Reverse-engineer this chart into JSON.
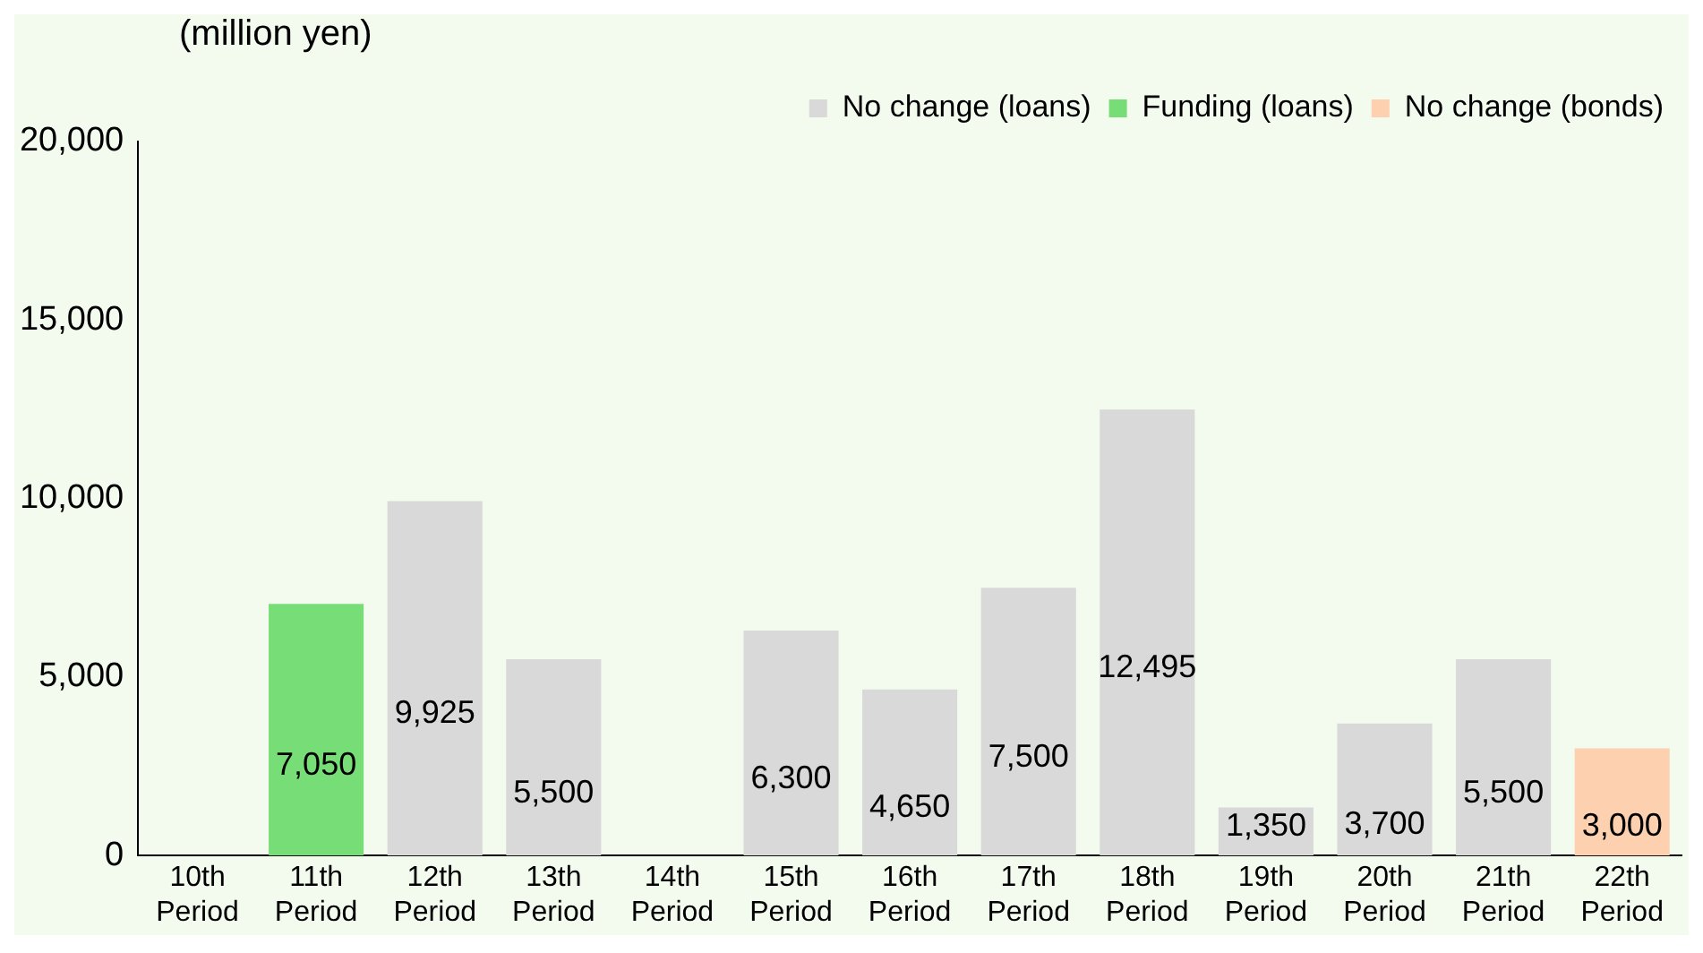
{
  "chart_data": {
    "type": "bar",
    "ylabel": "(million yen)",
    "stacked": true,
    "legend": "top right",
    "grid": false,
    "categories": [
      "10th Period",
      "11th Period",
      "12th Period",
      "13th Period",
      "14th Period",
      "15th Period",
      "16th Period",
      "17th Period",
      "18th Period",
      "19th Period",
      "20th Period",
      "21th Period",
      "22th Period"
    ],
    "series": [
      {
        "name": "No change (loans)",
        "color": "#d9d9d9",
        "values": [
          null,
          null,
          9925,
          5500,
          null,
          6300,
          4650,
          7500,
          12495,
          1350,
          3700,
          5500,
          null
        ],
        "value_labels": [
          null,
          null,
          "9,925",
          "5,500",
          null,
          "6,300",
          "4,650",
          "7,500",
          "12,495",
          "1,350",
          "3,700",
          "5,500",
          null
        ]
      },
      {
        "name": "Funding (loans)",
        "color": "#77dd77",
        "values": [
          null,
          7050,
          null,
          null,
          null,
          null,
          null,
          null,
          null,
          null,
          null,
          null,
          null
        ],
        "value_labels": [
          null,
          "7,050",
          null,
          null,
          null,
          null,
          null,
          null,
          null,
          null,
          null,
          null,
          null
        ]
      },
      {
        "name": "No change (bonds)",
        "color": "#fdd0b0",
        "values": [
          null,
          null,
          null,
          null,
          null,
          null,
          null,
          null,
          null,
          null,
          null,
          null,
          3000
        ],
        "value_labels": [
          null,
          null,
          null,
          null,
          null,
          null,
          null,
          null,
          null,
          null,
          null,
          null,
          "3,000"
        ]
      }
    ],
    "ylim": [
      0,
      20000
    ],
    "yticks": [
      {
        "value": 0,
        "label": "0"
      },
      {
        "value": 5000,
        "label": "5,000"
      },
      {
        "value": 10000,
        "label": "10,000"
      },
      {
        "value": 15000,
        "label": "15,000"
      },
      {
        "value": 20000,
        "label": "20,000"
      }
    ]
  }
}
